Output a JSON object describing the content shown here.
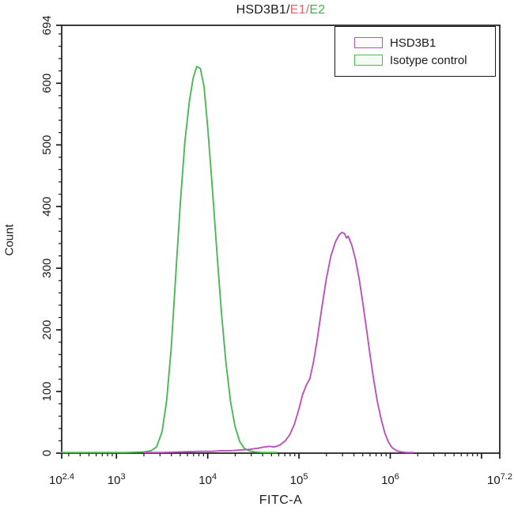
{
  "title": {
    "segments": [
      {
        "text": "HSD3B1",
        "color": "#1a1a1a"
      },
      {
        "text": "/",
        "color": "#1a1a1a"
      },
      {
        "text": "E1",
        "color": "#e06666"
      },
      {
        "text": "/",
        "color": "#e06666"
      },
      {
        "text": "E2",
        "color": "#3fb04e"
      }
    ]
  },
  "legend": {
    "entries": [
      {
        "label": "HSD3B1",
        "color": "#bb52bb",
        "fill": "#fefbfe"
      },
      {
        "label": "Isotype control",
        "color": "#4bb857",
        "fill": "#f3fbf3"
      }
    ]
  },
  "axes": {
    "x": {
      "label": "FITC-A",
      "scale": "log10",
      "major_ticks": [
        {
          "log": 2.4,
          "base": "10",
          "exp": "2.4",
          "labeled": true
        },
        {
          "log": 3,
          "base": "10",
          "exp": "3",
          "labeled": true
        },
        {
          "log": 4,
          "base": "10",
          "exp": "4",
          "labeled": true
        },
        {
          "log": 5,
          "base": "10",
          "exp": "5",
          "labeled": true
        },
        {
          "log": 6,
          "base": "10",
          "exp": "6",
          "labeled": true
        },
        {
          "log": 7,
          "base": "10",
          "exp": "7",
          "labeled": false
        },
        {
          "log": 7.2,
          "base": "10",
          "exp": "7.2",
          "labeled": true
        }
      ]
    },
    "y": {
      "label": "Count",
      "major_ticks": [
        0,
        100,
        200,
        300,
        400,
        500,
        600,
        694
      ],
      "minor_step": 20
    }
  },
  "chart_data": {
    "type": "line",
    "subtype": "flow-cytometry-histogram-overlay",
    "title": "HSD3B1/E1/E2",
    "xlabel": "FITC-A",
    "ylabel": "Count",
    "x_scale": "log10",
    "xlim_log": [
      2.4,
      7.2
    ],
    "ylim": [
      0,
      694
    ],
    "grid": false,
    "legend_position": "top-right",
    "series": [
      {
        "name": "Isotype control",
        "color": "#4bb857",
        "peak": {
          "x_log10": 3.89,
          "count": 628
        },
        "points_log10x_count": [
          [
            2.4,
            1
          ],
          [
            2.8,
            1
          ],
          [
            3.1,
            1
          ],
          [
            3.3,
            2
          ],
          [
            3.38,
            4
          ],
          [
            3.44,
            10
          ],
          [
            3.5,
            35
          ],
          [
            3.55,
            85
          ],
          [
            3.6,
            170
          ],
          [
            3.65,
            290
          ],
          [
            3.7,
            405
          ],
          [
            3.75,
            505
          ],
          [
            3.8,
            572
          ],
          [
            3.84,
            608
          ],
          [
            3.88,
            627
          ],
          [
            3.92,
            624
          ],
          [
            3.96,
            595
          ],
          [
            4.0,
            528
          ],
          [
            4.05,
            432
          ],
          [
            4.1,
            328
          ],
          [
            4.15,
            228
          ],
          [
            4.2,
            146
          ],
          [
            4.25,
            84
          ],
          [
            4.3,
            43
          ],
          [
            4.35,
            19
          ],
          [
            4.4,
            8
          ],
          [
            4.45,
            4
          ],
          [
            4.52,
            2
          ],
          [
            4.6,
            1
          ],
          [
            4.75,
            1
          ]
        ]
      },
      {
        "name": "HSD3B1",
        "color": "#bb52bb",
        "peak": {
          "x_log10": 5.47,
          "count": 358
        },
        "points_log10x_count": [
          [
            3.3,
            1
          ],
          [
            3.5,
            1
          ],
          [
            3.7,
            2
          ],
          [
            3.9,
            3
          ],
          [
            4.05,
            3
          ],
          [
            4.15,
            4
          ],
          [
            4.25,
            4
          ],
          [
            4.35,
            5
          ],
          [
            4.45,
            6
          ],
          [
            4.55,
            8
          ],
          [
            4.62,
            10
          ],
          [
            4.68,
            11
          ],
          [
            4.73,
            10
          ],
          [
            4.79,
            13
          ],
          [
            4.85,
            20
          ],
          [
            4.9,
            30
          ],
          [
            4.95,
            47
          ],
          [
            5.0,
            72
          ],
          [
            5.04,
            95
          ],
          [
            5.08,
            110
          ],
          [
            5.12,
            121
          ],
          [
            5.16,
            148
          ],
          [
            5.2,
            185
          ],
          [
            5.25,
            235
          ],
          [
            5.3,
            283
          ],
          [
            5.35,
            320
          ],
          [
            5.4,
            343
          ],
          [
            5.44,
            354
          ],
          [
            5.47,
            358
          ],
          [
            5.5,
            356
          ],
          [
            5.52,
            349
          ],
          [
            5.54,
            352
          ],
          [
            5.58,
            337
          ],
          [
            5.62,
            314
          ],
          [
            5.66,
            282
          ],
          [
            5.7,
            243
          ],
          [
            5.74,
            201
          ],
          [
            5.78,
            158
          ],
          [
            5.82,
            118
          ],
          [
            5.86,
            83
          ],
          [
            5.9,
            55
          ],
          [
            5.94,
            33
          ],
          [
            5.98,
            18
          ],
          [
            6.02,
            9
          ],
          [
            6.07,
            4
          ],
          [
            6.12,
            2
          ],
          [
            6.18,
            1
          ],
          [
            6.25,
            1
          ]
        ]
      }
    ]
  },
  "colors": {
    "axis": "#1a1a1a",
    "text": "#1a1a1a",
    "background": "#ffffff"
  }
}
